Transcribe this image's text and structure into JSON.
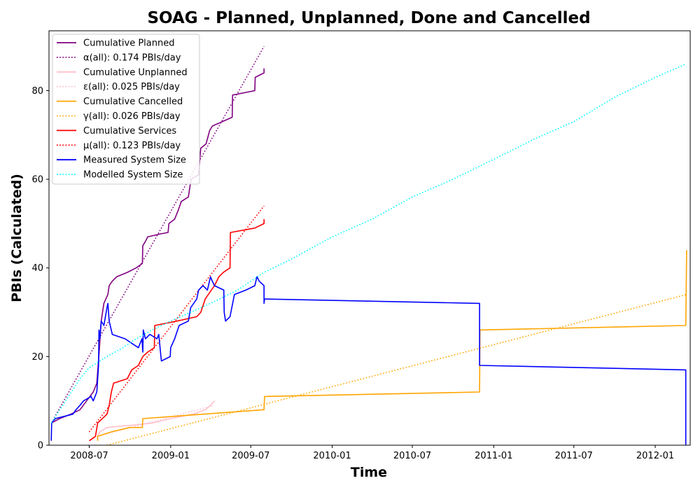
{
  "chart_data": {
    "type": "line",
    "title": "SOAG - Planned, Unplanned, Done  and Cancelled",
    "xlabel": "Time",
    "ylabel": "PBIs (Calculated)",
    "xlim": [
      "2008-04-01",
      "2012-03-20"
    ],
    "ylim": [
      0,
      93.5
    ],
    "x_ticks": [
      "2008-07-01",
      "2009-01-01",
      "2009-07-01",
      "2010-01-01",
      "2010-07-01",
      "2011-01-01",
      "2011-07-01",
      "2012-01-01"
    ],
    "x_tick_labels": [
      "2008-07",
      "2009-01",
      "2009-07",
      "2010-01",
      "2010-07",
      "2011-01",
      "2011-07",
      "2012-01"
    ],
    "y_ticks": [
      0,
      20,
      40,
      60,
      80
    ],
    "grid": false,
    "legend_position": "top-left",
    "series": [
      {
        "name": "Cumulative Planned",
        "color": "#800080",
        "style": "solid",
        "points": [
          [
            "2008-04-06",
            5
          ],
          [
            "2008-04-25",
            6
          ],
          [
            "2008-05-20",
            7
          ],
          [
            "2008-06-10",
            8
          ],
          [
            "2008-06-25",
            10
          ],
          [
            "2008-07-10",
            12
          ],
          [
            "2008-07-18",
            14
          ],
          [
            "2008-07-24",
            22
          ],
          [
            "2008-07-28",
            28
          ],
          [
            "2008-08-03",
            32
          ],
          [
            "2008-08-12",
            34
          ],
          [
            "2008-08-15",
            36
          ],
          [
            "2008-08-22",
            37
          ],
          [
            "2008-09-01",
            38
          ],
          [
            "2008-09-25",
            39
          ],
          [
            "2008-10-15",
            40
          ],
          [
            "2008-10-29",
            41
          ],
          [
            "2008-10-30",
            45
          ],
          [
            "2008-11-05",
            46
          ],
          [
            "2008-11-10",
            47
          ],
          [
            "2008-12-10",
            47.7
          ],
          [
            "2008-12-26",
            48
          ],
          [
            "2008-12-28",
            50
          ],
          [
            "2009-01-10",
            51
          ],
          [
            "2009-01-18",
            53
          ],
          [
            "2009-01-25",
            55
          ],
          [
            "2009-02-10",
            56
          ],
          [
            "2009-02-16",
            60
          ],
          [
            "2009-03-05",
            61
          ],
          [
            "2009-03-10",
            67
          ],
          [
            "2009-03-22",
            68
          ],
          [
            "2009-03-30",
            71
          ],
          [
            "2009-04-05",
            72
          ],
          [
            "2009-05-20",
            74
          ],
          [
            "2009-05-21",
            79
          ],
          [
            "2009-07-10",
            80
          ],
          [
            "2009-07-11",
            83
          ],
          [
            "2009-07-31",
            84
          ],
          [
            "2009-07-31",
            85
          ]
        ]
      },
      {
        "name": "α(all): 0.174 PBIs/day",
        "color": "#800080",
        "style": "dotted",
        "points": [
          [
            "2008-04-06",
            5
          ],
          [
            "2009-07-31",
            90
          ]
        ]
      },
      {
        "name": "Cumulative Unplanned",
        "color": "#ffc0cb",
        "style": "solid",
        "points": [
          [
            "2008-07-20",
            2
          ],
          [
            "2008-07-25",
            3
          ],
          [
            "2008-08-10",
            4
          ],
          [
            "2008-09-10",
            4.3
          ],
          [
            "2008-10-15",
            4.6
          ],
          [
            "2008-11-20",
            5
          ],
          [
            "2009-01-01",
            6
          ],
          [
            "2009-02-20",
            7
          ],
          [
            "2009-03-20",
            8
          ],
          [
            "2009-04-01",
            9
          ],
          [
            "2009-04-10",
            10
          ]
        ]
      },
      {
        "name": "ε(all): 0.025 PBIs/day",
        "color": "#ffc0cb",
        "style": "dotted",
        "points": [
          [
            "2008-07-20",
            2
          ],
          [
            "2009-04-10",
            9
          ]
        ]
      },
      {
        "name": "Cumulative Cancelled",
        "color": "#ffa500",
        "style": "solid",
        "points": [
          [
            "2008-07-20",
            1
          ],
          [
            "2008-07-20",
            2
          ],
          [
            "2008-08-20",
            3
          ],
          [
            "2008-09-30",
            4
          ],
          [
            "2008-10-29",
            4
          ],
          [
            "2008-10-30",
            6
          ],
          [
            "2009-07-31",
            8
          ],
          [
            "2009-08-01",
            11
          ],
          [
            "2010-11-30",
            12
          ],
          [
            "2010-12-01",
            26
          ],
          [
            "2012-03-10",
            27
          ],
          [
            "2012-03-12",
            44
          ]
        ]
      },
      {
        "name": "γ(all): 0.026 PBIs/day",
        "color": "#ffa500",
        "style": "dotted",
        "points": [
          [
            "2008-08-10",
            0
          ],
          [
            "2012-03-12",
            34
          ]
        ]
      },
      {
        "name": "Cumulative Services",
        "color": "#ff0000",
        "style": "solid",
        "points": [
          [
            "2008-07-01",
            1
          ],
          [
            "2008-07-15",
            2
          ],
          [
            "2008-07-20",
            5
          ],
          [
            "2008-08-10",
            7
          ],
          [
            "2008-08-15",
            9
          ],
          [
            "2008-08-20",
            12
          ],
          [
            "2008-08-25",
            14
          ],
          [
            "2008-09-25",
            15
          ],
          [
            "2008-10-05",
            17
          ],
          [
            "2008-10-20",
            18
          ],
          [
            "2008-10-30",
            20
          ],
          [
            "2008-11-10",
            21
          ],
          [
            "2008-11-25",
            22
          ],
          [
            "2008-11-26",
            27
          ],
          [
            "2009-01-15",
            28
          ],
          [
            "2009-03-01",
            29
          ],
          [
            "2009-03-10",
            30
          ],
          [
            "2009-03-20",
            33
          ],
          [
            "2009-04-10",
            36
          ],
          [
            "2009-04-20",
            38
          ],
          [
            "2009-04-30",
            39
          ],
          [
            "2009-05-15",
            40
          ],
          [
            "2009-05-16",
            48
          ],
          [
            "2009-07-10",
            49
          ],
          [
            "2009-07-31",
            50
          ],
          [
            "2009-07-31",
            51
          ]
        ]
      },
      {
        "name": "μ(all): 0.123 PBIs/day",
        "color": "#ff0000",
        "style": "dotted",
        "points": [
          [
            "2008-07-01",
            3
          ],
          [
            "2009-07-31",
            54
          ]
        ]
      },
      {
        "name": "Measured System Size",
        "color": "#0000ff",
        "style": "solid",
        "points": [
          [
            "2008-04-06",
            1
          ],
          [
            "2008-04-07",
            5
          ],
          [
            "2008-04-15",
            6
          ],
          [
            "2008-05-25",
            7
          ],
          [
            "2008-06-01",
            8
          ],
          [
            "2008-06-10",
            9
          ],
          [
            "2008-06-18",
            10
          ],
          [
            "2008-07-05",
            11
          ],
          [
            "2008-07-10",
            10
          ],
          [
            "2008-07-18",
            12
          ],
          [
            "2008-07-22",
            18
          ],
          [
            "2008-07-23",
            26
          ],
          [
            "2008-07-25",
            24
          ],
          [
            "2008-07-28",
            28
          ],
          [
            "2008-08-03",
            27
          ],
          [
            "2008-08-10",
            31
          ],
          [
            "2008-08-12",
            32
          ],
          [
            "2008-08-15",
            28
          ],
          [
            "2008-08-22",
            25
          ],
          [
            "2008-09-20",
            24
          ],
          [
            "2008-10-05",
            23
          ],
          [
            "2008-10-20",
            22
          ],
          [
            "2008-10-28",
            24
          ],
          [
            "2008-10-30",
            21
          ],
          [
            "2008-10-31",
            26
          ],
          [
            "2008-11-05",
            24
          ],
          [
            "2008-11-15",
            25
          ],
          [
            "2008-12-01",
            24
          ],
          [
            "2008-12-05",
            25
          ],
          [
            "2008-12-10",
            20
          ],
          [
            "2008-12-11",
            19
          ],
          [
            "2008-12-31",
            20
          ],
          [
            "2009-01-01",
            22
          ],
          [
            "2009-01-10",
            24
          ],
          [
            "2009-01-20",
            27
          ],
          [
            "2009-02-10",
            28
          ],
          [
            "2009-02-15",
            31
          ],
          [
            "2009-03-01",
            33
          ],
          [
            "2009-03-05",
            35
          ],
          [
            "2009-03-15",
            36
          ],
          [
            "2009-03-25",
            35
          ],
          [
            "2009-04-01",
            38
          ],
          [
            "2009-04-05",
            37
          ],
          [
            "2009-04-10",
            36
          ],
          [
            "2009-05-01",
            35
          ],
          [
            "2009-05-02",
            30
          ],
          [
            "2009-05-05",
            28
          ],
          [
            "2009-05-15",
            29
          ],
          [
            "2009-05-25",
            34
          ],
          [
            "2009-06-20",
            35
          ],
          [
            "2009-07-10",
            36
          ],
          [
            "2009-07-15",
            38
          ],
          [
            "2009-07-20",
            37
          ],
          [
            "2009-07-31",
            36
          ],
          [
            "2009-07-31",
            32
          ],
          [
            "2009-08-01",
            33
          ],
          [
            "2010-11-30",
            32
          ],
          [
            "2010-11-30",
            18
          ],
          [
            "2012-03-10",
            17
          ],
          [
            "2012-03-10",
            0
          ]
        ]
      },
      {
        "name": "Modelled System Size",
        "color": "#00ffff",
        "style": "dotted",
        "points": [
          [
            "2008-04-06",
            5
          ],
          [
            "2008-05-15",
            11
          ],
          [
            "2008-06-10",
            15
          ],
          [
            "2008-07-01",
            17.5
          ],
          [
            "2008-08-10",
            20
          ],
          [
            "2008-09-15",
            22
          ],
          [
            "2008-10-15",
            24
          ],
          [
            "2008-11-20",
            26
          ],
          [
            "2009-01-01",
            28
          ],
          [
            "2009-02-15",
            30
          ],
          [
            "2009-04-01",
            32
          ],
          [
            "2009-06-01",
            35
          ],
          [
            "2009-07-31",
            39
          ],
          [
            "2009-10-01",
            42
          ],
          [
            "2010-01-01",
            47
          ],
          [
            "2010-04-01",
            51
          ],
          [
            "2010-07-01",
            56
          ],
          [
            "2010-10-01",
            60
          ],
          [
            "2011-01-01",
            64.5
          ],
          [
            "2011-04-01",
            69
          ],
          [
            "2011-07-01",
            73
          ],
          [
            "2011-10-01",
            78.5
          ],
          [
            "2012-01-01",
            83
          ],
          [
            "2012-03-10",
            86
          ]
        ]
      }
    ]
  }
}
